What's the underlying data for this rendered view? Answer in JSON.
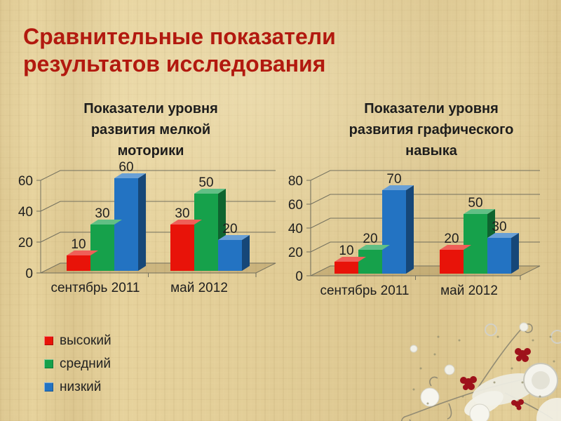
{
  "slide": {
    "title_lines": [
      "Сравнительные показатели",
      "результатов исследования"
    ],
    "title_color": "#b2190f",
    "background_color": "#e6d29c"
  },
  "legend": {
    "position": "bottom-left",
    "items": [
      {
        "label": "высокий",
        "color": "#e81309"
      },
      {
        "label": "средний",
        "color": "#16a14b"
      },
      {
        "label": "низкий",
        "color": "#2373c2"
      }
    ]
  },
  "chart_data": [
    {
      "type": "bar",
      "projection": "3d",
      "title": "Показатели уровня развития мелкой моторики",
      "title_lines": [
        "Показатели уровня",
        "развития мелкой",
        "моторики"
      ],
      "categories": [
        "сентябрь 2011",
        "май 2012"
      ],
      "series": [
        {
          "name": "высокий",
          "color": "#e81309",
          "values": [
            10,
            30
          ]
        },
        {
          "name": "средний",
          "color": "#16a14b",
          "values": [
            30,
            50
          ]
        },
        {
          "name": "низкий",
          "color": "#2373c2",
          "values": [
            60,
            20
          ]
        }
      ],
      "ylim": [
        0,
        60
      ],
      "ytick_step": 20,
      "yticks": [
        0,
        20,
        40,
        60
      ],
      "grid": true,
      "data_labels": true,
      "legend_position": "none"
    },
    {
      "type": "bar",
      "projection": "3d",
      "title": "Показатели уровня развития графического навыка",
      "title_lines": [
        "Показатели уровня",
        "развития графического",
        "навыка"
      ],
      "categories": [
        "сентябрь 2011",
        "май 2012"
      ],
      "series": [
        {
          "name": "высокий",
          "color": "#e81309",
          "values": [
            10,
            20
          ]
        },
        {
          "name": "средний",
          "color": "#16a14b",
          "values": [
            20,
            50
          ]
        },
        {
          "name": "низкий",
          "color": "#2373c2",
          "values": [
            70,
            30
          ]
        }
      ],
      "ylim": [
        0,
        80
      ],
      "ytick_step": 20,
      "yticks": [
        0,
        20,
        40,
        60,
        80
      ],
      "grid": true,
      "data_labels": true,
      "legend_position": "none"
    }
  ]
}
